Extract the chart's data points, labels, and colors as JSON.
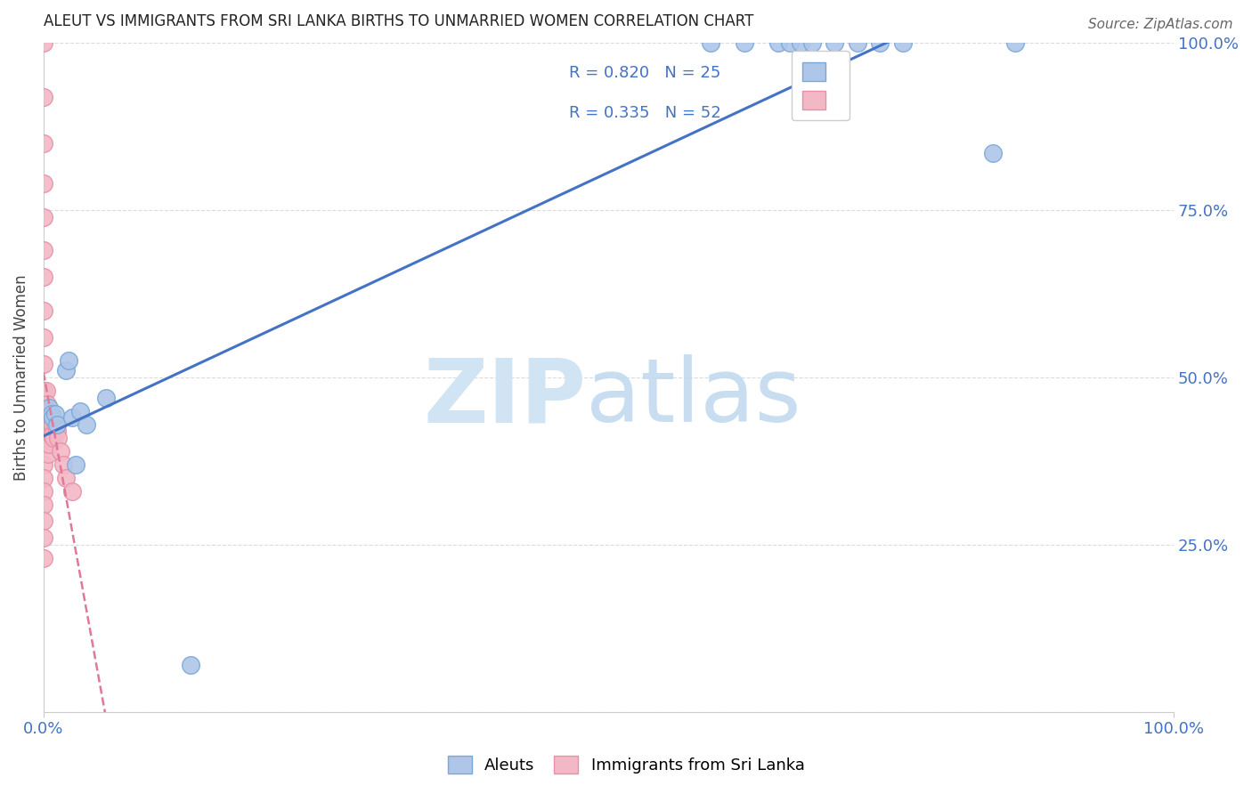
{
  "title": "ALEUT VS IMMIGRANTS FROM SRI LANKA BIRTHS TO UNMARRIED WOMEN CORRELATION CHART",
  "source": "Source: ZipAtlas.com",
  "ylabel": "Births to Unmarried Women",
  "aleuts_x": [
    0.005,
    0.007,
    0.008,
    0.01,
    0.012,
    0.02,
    0.022,
    0.025,
    0.028,
    0.032,
    0.038,
    0.055,
    0.13,
    0.59,
    0.62,
    0.65,
    0.66,
    0.67,
    0.68,
    0.7,
    0.72,
    0.74,
    0.76,
    0.84,
    0.86
  ],
  "aleuts_y": [
    0.455,
    0.445,
    0.44,
    0.445,
    0.43,
    0.51,
    0.525,
    0.44,
    0.37,
    0.45,
    0.43,
    0.47,
    0.07,
    1.0,
    1.0,
    1.0,
    1.0,
    1.0,
    1.0,
    1.0,
    1.0,
    1.0,
    1.0,
    0.835,
    1.0
  ],
  "sri_lanka_x": [
    0.0,
    0.0,
    0.0,
    0.0,
    0.0,
    0.0,
    0.0,
    0.0,
    0.0,
    0.0,
    0.0,
    0.0,
    0.0,
    0.0,
    0.0,
    0.0,
    0.0,
    0.0,
    0.0,
    0.0,
    0.002,
    0.002,
    0.003,
    0.003,
    0.003,
    0.003,
    0.003,
    0.004,
    0.004,
    0.004,
    0.004,
    0.004,
    0.005,
    0.005,
    0.005,
    0.005,
    0.005,
    0.006,
    0.006,
    0.006,
    0.007,
    0.007,
    0.008,
    0.008,
    0.009,
    0.01,
    0.012,
    0.013,
    0.015,
    0.017,
    0.02,
    0.025
  ],
  "sri_lanka_y": [
    1.0,
    0.92,
    0.85,
    0.79,
    0.74,
    0.69,
    0.65,
    0.6,
    0.56,
    0.52,
    0.48,
    0.44,
    0.4,
    0.37,
    0.35,
    0.33,
    0.31,
    0.285,
    0.26,
    0.23,
    0.48,
    0.44,
    0.46,
    0.44,
    0.43,
    0.42,
    0.4,
    0.45,
    0.43,
    0.415,
    0.4,
    0.385,
    0.45,
    0.44,
    0.43,
    0.415,
    0.4,
    0.44,
    0.43,
    0.415,
    0.43,
    0.415,
    0.43,
    0.415,
    0.41,
    0.43,
    0.42,
    0.41,
    0.39,
    0.37,
    0.35,
    0.33
  ],
  "aleut_color": "#aec6e8",
  "sri_lanka_color": "#f2b8c6",
  "aleut_edge_color": "#7aa8d8",
  "sri_lanka_edge_color": "#e890a8",
  "aleut_line_color": "#4472c4",
  "sri_lanka_line_color": "#e07898",
  "R_aleut": "R = 0.820",
  "N_aleut": "N = 25",
  "R_sri_lanka": "R = 0.335",
  "N_sri_lanka": "N = 52",
  "xlim": [
    0.0,
    1.0
  ],
  "ylim": [
    0.0,
    1.0
  ],
  "grid_color": "#d8d8d8",
  "spine_color": "#cccccc",
  "tick_color": "#4472c4",
  "ylabel_color": "#444444",
  "title_color": "#222222",
  "source_color": "#666666",
  "watermark_zip_color": "#d0e4f4",
  "watermark_atlas_color": "#c0d8ee"
}
